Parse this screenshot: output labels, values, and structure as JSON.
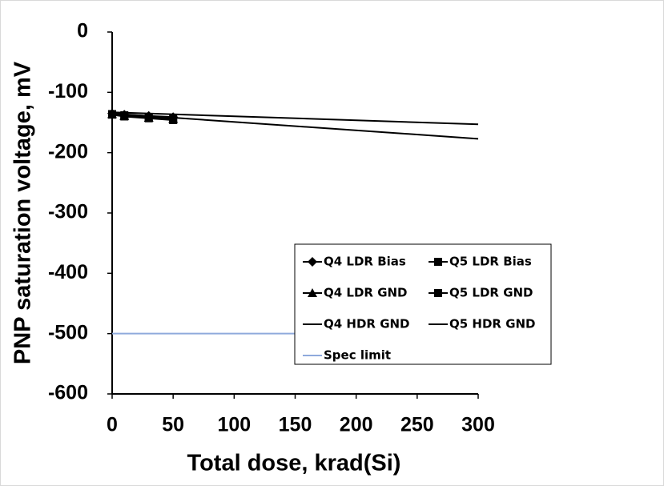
{
  "chart_data": {
    "type": "line",
    "x_label": "Total dose, krad(Si)",
    "y_label": "PNP saturation voltage, mV",
    "xlim": [
      0,
      300
    ],
    "xticks": [
      0,
      50,
      100,
      150,
      200,
      250,
      300
    ],
    "ylim": [
      -600,
      0
    ],
    "yticks": [
      0,
      -100,
      -200,
      -300,
      -400,
      -500,
      -600
    ],
    "legend_position": "lower right",
    "series": [
      {
        "name": "Q4 LDR Bias",
        "color": "#000000",
        "marker": "diamond",
        "x": [
          0,
          10,
          30,
          50
        ],
        "values": [
          -135,
          -137,
          -139,
          -141
        ]
      },
      {
        "name": "Q5 LDR Bias",
        "color": "#000000",
        "marker": "square",
        "x": [
          0,
          10,
          30,
          50
        ],
        "values": [
          -136,
          -138,
          -141,
          -144
        ]
      },
      {
        "name": "Q4 LDR GND",
        "color": "#000000",
        "marker": "triangle",
        "x": [
          0,
          10,
          30,
          50
        ],
        "values": [
          -136,
          -139,
          -142,
          -144
        ]
      },
      {
        "name": "Q5 LDR GND",
        "color": "#000000",
        "marker": "square",
        "x": [
          0,
          10,
          30,
          50
        ],
        "values": [
          -137,
          -140,
          -143,
          -146
        ]
      },
      {
        "name": "Q4 HDR GND",
        "color": "#000000",
        "marker": "none",
        "x": [
          0,
          300
        ],
        "values": [
          -135,
          -177
        ]
      },
      {
        "name": "Q5 HDR GND",
        "color": "#000000",
        "marker": "none",
        "x": [
          0,
          300
        ],
        "values": [
          -133,
          -153
        ]
      },
      {
        "name": "Spec limit",
        "color": "#8faadc",
        "marker": "none",
        "x": [
          0,
          300
        ],
        "values": [
          -500,
          -500
        ]
      }
    ]
  }
}
